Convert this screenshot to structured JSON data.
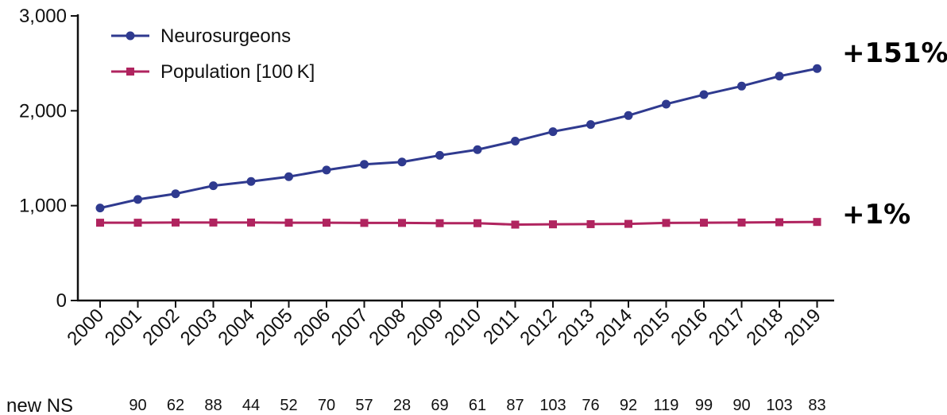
{
  "chart_data": {
    "type": "line",
    "title": "",
    "xlabel": "",
    "ylabel": "",
    "x": [
      "2000",
      "2001",
      "2002",
      "2003",
      "2004",
      "2005",
      "2006",
      "2007",
      "2008",
      "2009",
      "2010",
      "2011",
      "2012",
      "2013",
      "2014",
      "2015",
      "2016",
      "2017",
      "2018",
      "2019"
    ],
    "ylim": [
      0,
      3000
    ],
    "yticks": [
      0,
      1000,
      2000,
      3000
    ],
    "ytick_labels": [
      "0",
      "1,000",
      "2,000",
      "3,000"
    ],
    "grid": false,
    "legend_position": "top-left",
    "series": [
      {
        "name": "Neurosurgeons",
        "color": "#2f3a8f",
        "marker": "circle",
        "values": [
          975,
          1065,
          1125,
          1210,
          1255,
          1305,
          1375,
          1435,
          1460,
          1530,
          1590,
          1680,
          1780,
          1855,
          1950,
          2070,
          2170,
          2260,
          2365,
          2445
        ]
      },
      {
        "name": "Population [100 K]",
        "color": "#b0245f",
        "marker": "square",
        "values": [
          820,
          820,
          822,
          822,
          822,
          820,
          820,
          818,
          818,
          815,
          815,
          800,
          803,
          805,
          808,
          818,
          820,
          822,
          825,
          828
        ]
      }
    ],
    "annotations": [
      {
        "text": "+151%",
        "series": "Neurosurgeons"
      },
      {
        "text": "+1%",
        "series": "Population [100 K]"
      }
    ],
    "new_ns": {
      "label": "new NS",
      "values": [
        "90",
        "62",
        "88",
        "44",
        "52",
        "70",
        "57",
        "28",
        "69",
        "61",
        "87",
        "103",
        "76",
        "92",
        "119",
        "99",
        "90",
        "103",
        "83"
      ]
    }
  }
}
